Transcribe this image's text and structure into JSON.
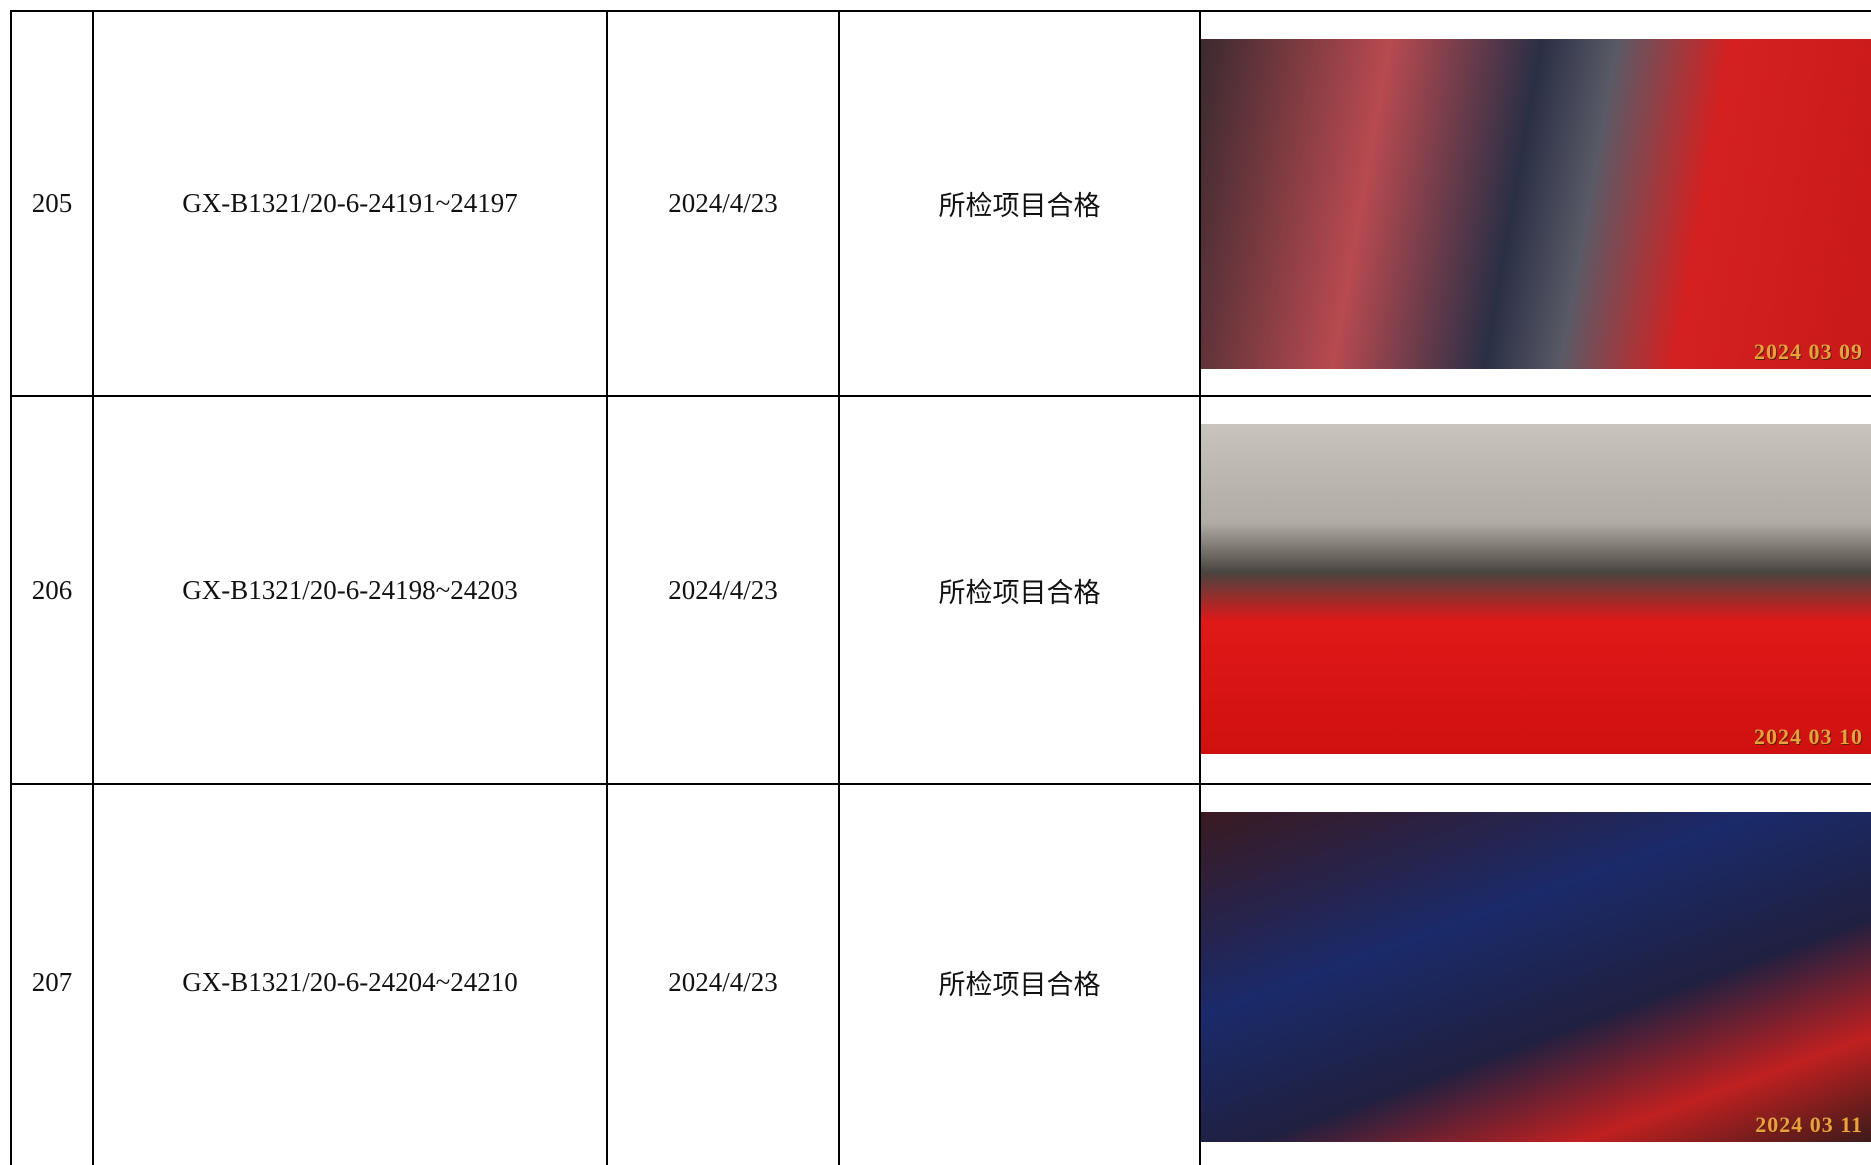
{
  "table": {
    "rows": [
      [
        "205",
        "GX-B1321/20-6-24191~24197",
        "2024/4/23",
        "所检项目合格",
        "2024 03 09"
      ],
      [
        "206",
        "GX-B1321/20-6-24198~24203",
        "2024/4/23",
        "所检项目合格",
        "2024 03 10"
      ],
      [
        "207",
        "GX-B1321/20-6-24204~24210",
        "2024/4/23",
        "所检项目合格",
        "2024 03 11"
      ]
    ]
  }
}
